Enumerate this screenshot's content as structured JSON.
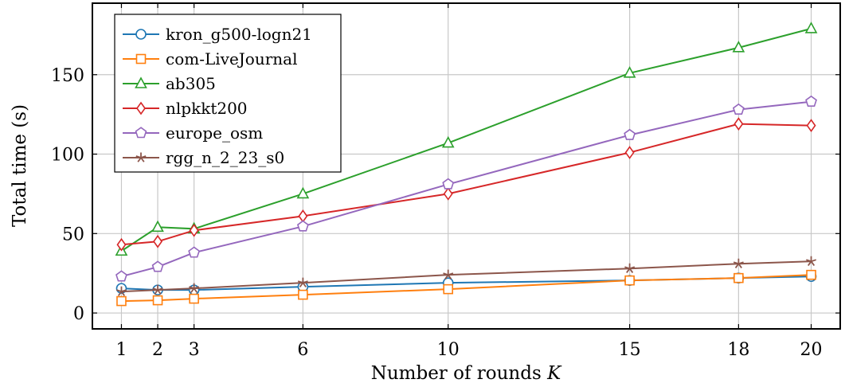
{
  "chart_data": {
    "type": "line",
    "xlabel": "Number of rounds",
    "xlabel_var": "K",
    "ylabel": "Total time (s)",
    "x": [
      1,
      2,
      3,
      6,
      10,
      15,
      18,
      20
    ],
    "xticks": [
      "1",
      "2",
      "3",
      "6",
      "10",
      "15",
      "18",
      "20"
    ],
    "yticks": [
      "0",
      "50",
      "100",
      "150"
    ],
    "xlim": [
      0.2,
      20.8
    ],
    "ylim": [
      -10,
      195
    ],
    "grid": true,
    "legend_position": "top-left",
    "series": [
      {
        "name": "kron_g500-logn21",
        "color": "#1f77b4",
        "marker": "circle",
        "values": [
          15.5,
          14.5,
          14.5,
          16.5,
          19,
          20.5,
          22,
          23
        ]
      },
      {
        "name": "com-LiveJournal",
        "color": "#ff7f0e",
        "marker": "square",
        "values": [
          7.5,
          8,
          9,
          11.5,
          15,
          20.5,
          22,
          24
        ]
      },
      {
        "name": "ab305",
        "color": "#2ca02c",
        "marker": "triangle",
        "values": [
          39,
          54,
          53,
          75,
          107,
          151,
          167,
          179
        ]
      },
      {
        "name": "nlpkkt200",
        "color": "#d62728",
        "marker": "diamond",
        "values": [
          43,
          45,
          52,
          61,
          75,
          101,
          119,
          118
        ]
      },
      {
        "name": "europe_osm",
        "color": "#9467bd",
        "marker": "pentagon",
        "values": [
          23,
          29,
          38,
          54.5,
          81,
          112,
          128,
          133
        ]
      },
      {
        "name": "rgg_n_2_23_s0",
        "color": "#8c564b",
        "marker": "star",
        "values": [
          13.5,
          14.5,
          15.5,
          19,
          24,
          28,
          31,
          32.5
        ]
      }
    ]
  }
}
